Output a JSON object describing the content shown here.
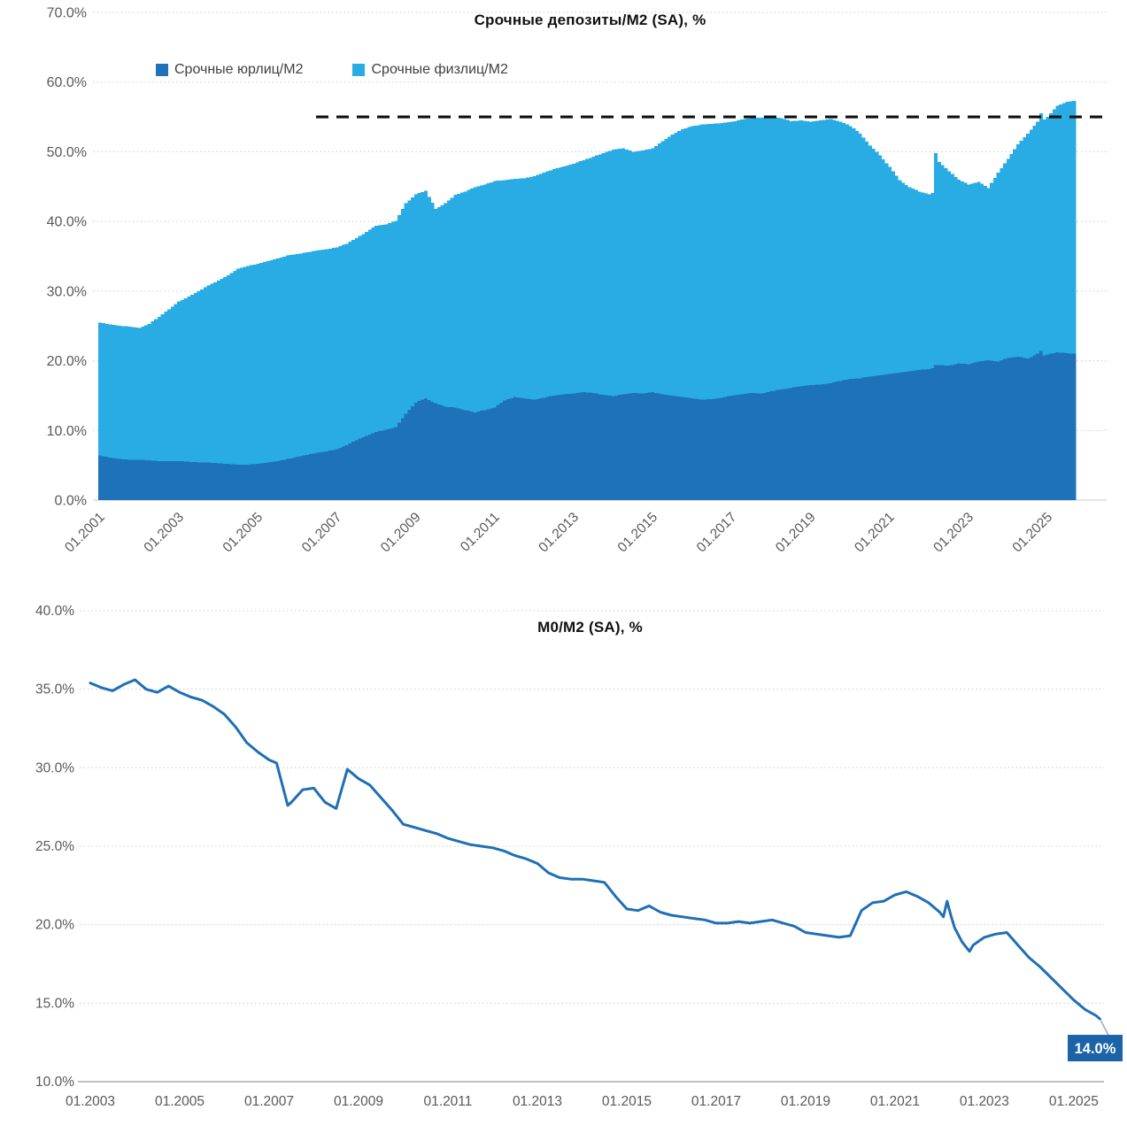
{
  "colors": {
    "corp_series": "#1d72b8",
    "retail_series": "#29abe3",
    "line_series": "#1f6fb5",
    "callout_bg": "#1c64a7",
    "callout_text": "#ffffff",
    "axis_label": "#595959",
    "gridline": "#c9c9c9",
    "axis_line": "#bfbfbf",
    "ref_line": "#111111"
  },
  "chart_data": [
    {
      "type": "area",
      "subtype": "stacked-monthly-columns",
      "title": "Срочные депозиты/М2 (SA), %",
      "legend_position": "top",
      "grid": true,
      "ylim": [
        0,
        70
      ],
      "y_ticks": {
        "values": [
          0,
          10,
          20,
          30,
          40,
          50,
          60,
          70
        ],
        "labels": [
          "0.0%",
          "10.0%",
          "20.0%",
          "30.0%",
          "40.0%",
          "50.0%",
          "60.0%",
          "70.0%"
        ]
      },
      "x_ticks": {
        "months": [
          0,
          24,
          48,
          72,
          96,
          120,
          144,
          168,
          192,
          216,
          240,
          264,
          288
        ],
        "labels": [
          "01.2001",
          "01.2003",
          "01.2005",
          "01.2007",
          "01.2009",
          "01.2011",
          "01.2013",
          "01.2015",
          "01.2017",
          "01.2019",
          "01.2021",
          "01.2023",
          "01.2025"
        ],
        "rotated": true
      },
      "x_start_label": "01.2001",
      "x_end_month": 296,
      "ref_line": {
        "value": 55,
        "style": "dashed"
      },
      "x_months": [
        0,
        3,
        6,
        9,
        12,
        15,
        18,
        21,
        24,
        27,
        30,
        33,
        36,
        39,
        42,
        45,
        48,
        51,
        54,
        57,
        60,
        63,
        66,
        69,
        72,
        75,
        78,
        81,
        84,
        87,
        90,
        93,
        96,
        99,
        102,
        105,
        108,
        111,
        114,
        117,
        120,
        123,
        126,
        129,
        132,
        135,
        138,
        141,
        144,
        147,
        150,
        153,
        156,
        159,
        162,
        165,
        168,
        171,
        174,
        177,
        180,
        183,
        186,
        189,
        192,
        195,
        198,
        201,
        204,
        207,
        210,
        213,
        216,
        219,
        222,
        225,
        228,
        231,
        234,
        237,
        240,
        243,
        246,
        249,
        252,
        253,
        254,
        255,
        258,
        261,
        264,
        267,
        270,
        273,
        276,
        279,
        282,
        285,
        286,
        287,
        288,
        291,
        294,
        296
      ],
      "series": [
        {
          "name": "Срочные юрлиц/М2",
          "color_key": "corp_series",
          "values": [
            6.4,
            6.1,
            5.9,
            5.8,
            5.8,
            5.7,
            5.6,
            5.6,
            5.6,
            5.5,
            5.4,
            5.4,
            5.3,
            5.2,
            5.1,
            5.1,
            5.2,
            5.4,
            5.6,
            5.9,
            6.2,
            6.5,
            6.8,
            7.0,
            7.3,
            7.9,
            8.6,
            9.2,
            9.8,
            10.1,
            10.5,
            12.4,
            14.0,
            14.6,
            13.9,
            13.4,
            13.3,
            12.9,
            12.6,
            12.9,
            13.3,
            14.3,
            14.8,
            14.6,
            14.4,
            14.7,
            15.0,
            15.2,
            15.3,
            15.5,
            15.4,
            15.1,
            14.9,
            15.2,
            15.4,
            15.3,
            15.5,
            15.2,
            15.0,
            14.8,
            14.6,
            14.4,
            14.5,
            14.7,
            15.0,
            15.2,
            15.4,
            15.3,
            15.6,
            15.9,
            16.1,
            16.3,
            16.5,
            16.6,
            16.8,
            17.1,
            17.4,
            17.5,
            17.7,
            17.9,
            18.1,
            18.3,
            18.5,
            18.7,
            18.8,
            18.9,
            19.4,
            19.4,
            19.3,
            19.6,
            19.5,
            19.9,
            20.1,
            19.9,
            20.4,
            20.6,
            20.3,
            21.0,
            21.4,
            20.8,
            20.9,
            21.2,
            21.1,
            21.0
          ]
        },
        {
          "name": "Срочные физлиц/М2",
          "color_key": "retail_series",
          "values": [
            19.1,
            19.1,
            19.1,
            19.1,
            18.9,
            19.6,
            20.7,
            21.8,
            22.9,
            23.7,
            24.6,
            25.4,
            26.2,
            27.1,
            28.1,
            28.5,
            28.7,
            28.9,
            29.1,
            29.2,
            29.1,
            29.1,
            29.0,
            29.0,
            29.0,
            28.9,
            29.0,
            29.3,
            29.6,
            29.5,
            29.6,
            30.2,
            29.9,
            29.8,
            27.9,
            29.2,
            30.5,
            31.4,
            32.3,
            32.4,
            32.5,
            31.6,
            31.3,
            31.6,
            32.1,
            32.3,
            32.5,
            32.7,
            33.0,
            33.3,
            33.9,
            34.7,
            35.4,
            35.3,
            34.6,
            34.9,
            35.0,
            36.3,
            37.5,
            38.4,
            39.1,
            39.5,
            39.5,
            39.4,
            39.3,
            39.4,
            39.4,
            39.6,
            39.4,
            38.9,
            38.3,
            38.2,
            37.8,
            37.9,
            37.9,
            37.2,
            36.3,
            35.1,
            33.2,
            31.6,
            29.7,
            27.6,
            26.4,
            25.6,
            25.1,
            25.2,
            30.4,
            29.1,
            27.9,
            26.4,
            25.8,
            25.8,
            24.7,
            27.1,
            28.6,
            30.5,
            32.3,
            33.3,
            34.1,
            33.8,
            34.1,
            35.4,
            36.1,
            36.3
          ]
        }
      ]
    },
    {
      "type": "line",
      "title": "М0/М2 (SA), %",
      "grid": true,
      "ylim": [
        10,
        40
      ],
      "y_ticks": {
        "values": [
          10,
          15,
          20,
          25,
          30,
          35,
          40
        ],
        "labels": [
          "10.0%",
          "15.0%",
          "20.0%",
          "25.0%",
          "30.0%",
          "35.0%",
          "40.0%"
        ]
      },
      "x_ticks": {
        "months": [
          0,
          24,
          48,
          72,
          96,
          120,
          144,
          168,
          192,
          216,
          240,
          264
        ],
        "labels": [
          "01.2003",
          "01.2005",
          "01.2007",
          "01.2009",
          "01.2011",
          "01.2013",
          "01.2015",
          "01.2017",
          "01.2019",
          "01.2021",
          "01.2023",
          "01.2025"
        ],
        "rotated": false
      },
      "color_key": "line_series",
      "x_months": [
        0,
        3,
        6,
        9,
        12,
        15,
        18,
        21,
        24,
        27,
        30,
        33,
        36,
        39,
        42,
        45,
        48,
        50,
        53,
        54,
        57,
        60,
        63,
        66,
        69,
        72,
        75,
        78,
        81,
        84,
        87,
        90,
        93,
        96,
        99,
        102,
        105,
        108,
        111,
        114,
        117,
        120,
        123,
        126,
        129,
        132,
        135,
        138,
        141,
        144,
        147,
        150,
        153,
        156,
        159,
        162,
        165,
        168,
        171,
        174,
        177,
        180,
        183,
        186,
        189,
        192,
        195,
        198,
        201,
        204,
        207,
        210,
        213,
        216,
        219,
        222,
        225,
        228,
        229,
        230,
        231,
        232,
        234,
        236,
        237,
        240,
        243,
        246,
        249,
        252,
        255,
        258,
        261,
        264,
        267,
        270,
        271
      ],
      "values": [
        35.4,
        35.1,
        34.9,
        35.3,
        35.6,
        35.0,
        34.8,
        35.2,
        34.8,
        34.5,
        34.3,
        33.9,
        33.4,
        32.6,
        31.6,
        31.0,
        30.5,
        30.3,
        27.6,
        27.8,
        28.6,
        28.7,
        27.8,
        27.4,
        29.9,
        29.3,
        28.9,
        28.1,
        27.3,
        26.4,
        26.2,
        26.0,
        25.8,
        25.5,
        25.3,
        25.1,
        25.0,
        24.9,
        24.7,
        24.4,
        24.2,
        23.9,
        23.3,
        23.0,
        22.9,
        22.9,
        22.8,
        22.7,
        21.8,
        21.0,
        20.9,
        21.2,
        20.8,
        20.6,
        20.5,
        20.4,
        20.3,
        20.1,
        20.1,
        20.2,
        20.1,
        20.2,
        20.3,
        20.1,
        19.9,
        19.5,
        19.4,
        19.3,
        19.2,
        19.3,
        20.9,
        21.4,
        21.5,
        21.9,
        22.1,
        21.8,
        21.4,
        20.8,
        20.5,
        21.5,
        20.6,
        19.8,
        18.9,
        18.3,
        18.7,
        19.2,
        19.4,
        19.5,
        18.7,
        17.9,
        17.3,
        16.6,
        15.9,
        15.2,
        14.6,
        14.2,
        14.0
      ],
      "end_label": {
        "text": "14.0%"
      }
    }
  ]
}
